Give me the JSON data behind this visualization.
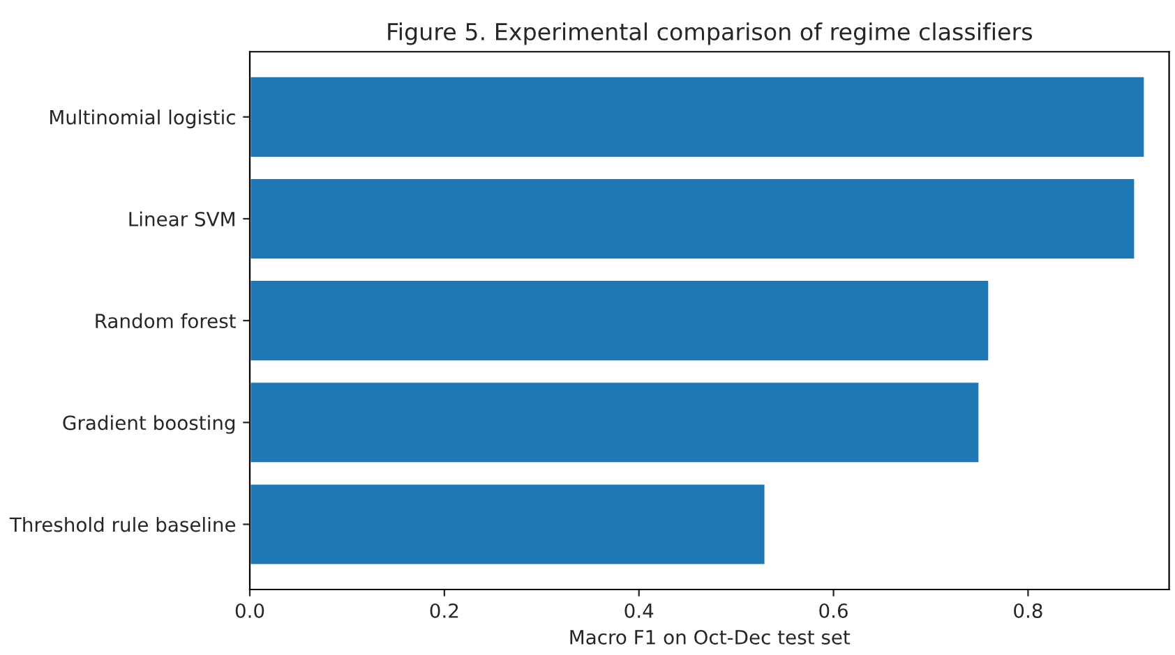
{
  "chart_data": {
    "type": "bar",
    "orientation": "horizontal",
    "title": "Figure 5. Experimental comparison of regime classifiers",
    "xlabel": "Macro F1 on Oct-Dec test set",
    "categories": [
      "Multinomial logistic",
      "Linear SVM",
      "Random forest",
      "Gradient boosting",
      "Threshold rule baseline"
    ],
    "values": [
      0.92,
      0.91,
      0.76,
      0.75,
      0.53
    ],
    "color": "#1f77b4",
    "xlim": [
      0,
      0.945
    ],
    "xticks": [
      {
        "value": 0,
        "label": "0.0"
      },
      0.2,
      0.4,
      0.6,
      0.8
    ],
    "grid": false,
    "legend": false
  }
}
